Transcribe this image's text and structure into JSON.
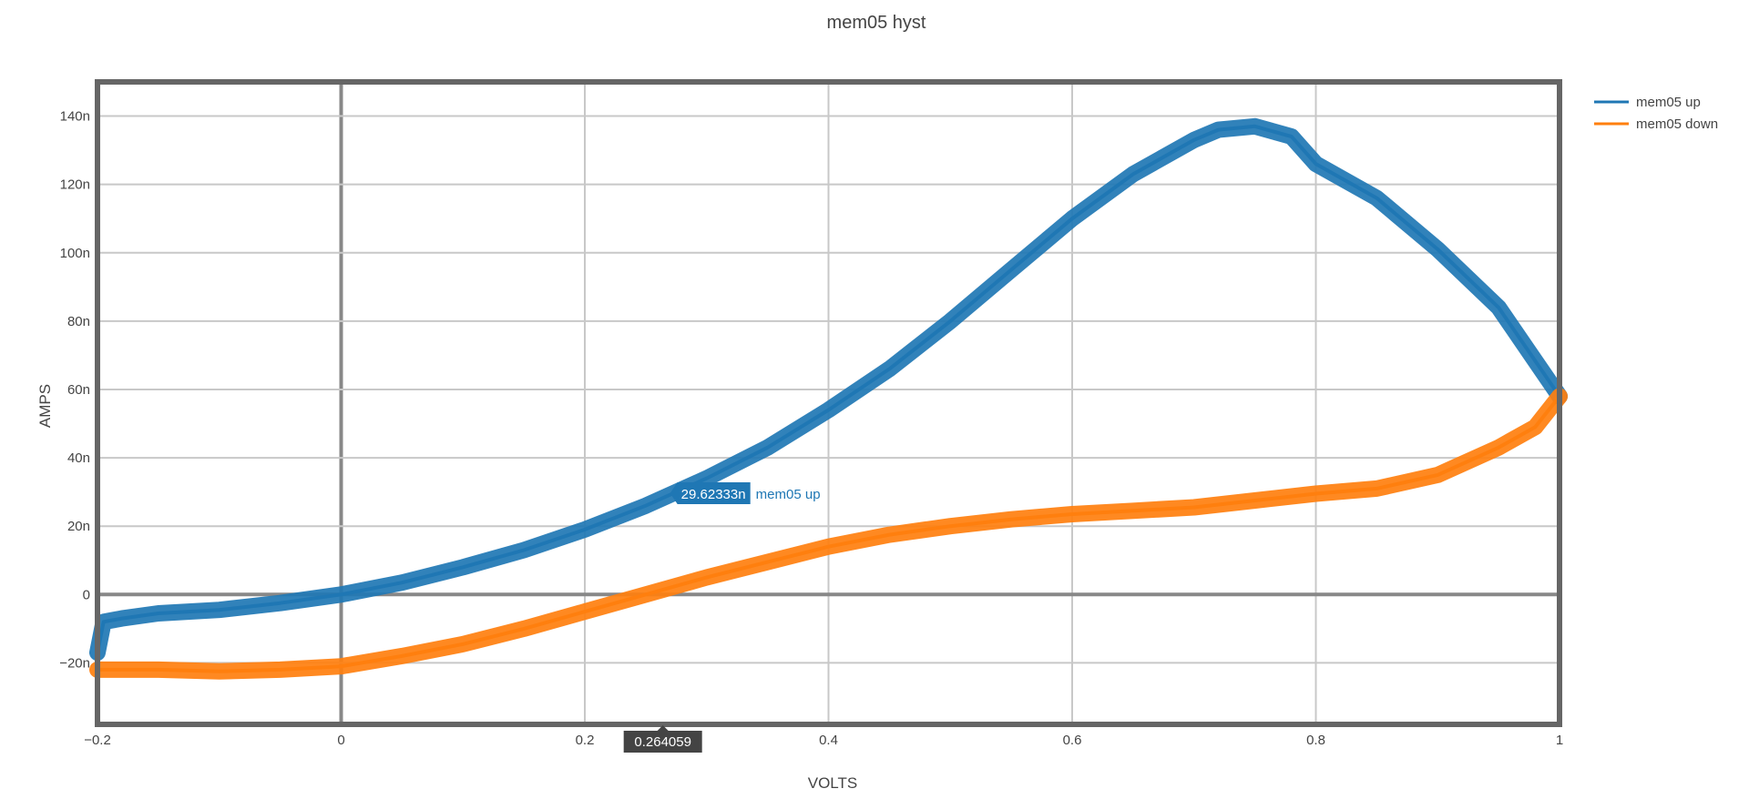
{
  "chart_data": {
    "type": "line",
    "title": "mem05 hyst",
    "xlabel": "VOLTS",
    "ylabel": "AMPS",
    "xlim": [
      -0.2,
      1.0
    ],
    "ylim": [
      -38,
      150
    ],
    "x_ticks": [
      {
        "value": -0.2,
        "label": "−0.2"
      },
      {
        "value": 0,
        "label": "0"
      },
      {
        "value": 0.2,
        "label": "0.2"
      },
      {
        "value": 0.4,
        "label": "0.4"
      },
      {
        "value": 0.6,
        "label": "0.6"
      },
      {
        "value": 0.8,
        "label": "0.8"
      },
      {
        "value": 1.0,
        "label": "1"
      }
    ],
    "y_ticks": [
      {
        "value": -20,
        "label": "−20n"
      },
      {
        "value": 0,
        "label": "0"
      },
      {
        "value": 20,
        "label": "20n"
      },
      {
        "value": 40,
        "label": "40n"
      },
      {
        "value": 60,
        "label": "60n"
      },
      {
        "value": 80,
        "label": "80n"
      },
      {
        "value": 100,
        "label": "100n"
      },
      {
        "value": 120,
        "label": "120n"
      },
      {
        "value": 140,
        "label": "140n"
      }
    ],
    "grid": true,
    "legend_position": "top-right",
    "series": [
      {
        "name": "mem05 up",
        "color": "#1f77b4",
        "x": [
          -0.2,
          -0.195,
          -0.18,
          -0.15,
          -0.1,
          -0.05,
          0.0,
          0.05,
          0.1,
          0.15,
          0.2,
          0.25,
          0.3,
          0.35,
          0.4,
          0.45,
          0.5,
          0.55,
          0.6,
          0.65,
          0.7,
          0.72,
          0.75,
          0.78,
          0.8,
          0.85,
          0.9,
          0.95,
          1.0
        ],
        "y": [
          -17,
          -8,
          -7,
          -5.5,
          -4.5,
          -2.5,
          0,
          3.5,
          8,
          13,
          19,
          26,
          34,
          43,
          54,
          66,
          80,
          95,
          110,
          123,
          133,
          136,
          137,
          134,
          126,
          116,
          101,
          84,
          58
        ]
      },
      {
        "name": "mem05 down",
        "color": "#ff7f0e",
        "x": [
          -0.2,
          -0.15,
          -0.1,
          -0.05,
          0.0,
          0.05,
          0.1,
          0.15,
          0.2,
          0.25,
          0.3,
          0.35,
          0.4,
          0.45,
          0.5,
          0.55,
          0.6,
          0.65,
          0.7,
          0.75,
          0.8,
          0.85,
          0.9,
          0.95,
          0.98,
          1.0
        ],
        "y": [
          -22,
          -22,
          -22.5,
          -22,
          -21,
          -18,
          -14.5,
          -10,
          -5,
          0,
          5,
          9.5,
          14,
          17.5,
          20,
          22,
          23.5,
          24.5,
          25.5,
          27.5,
          29.5,
          31,
          35,
          43,
          49,
          58
        ]
      }
    ],
    "hover": {
      "x_label": "0.264059",
      "y_value": "29.62333n",
      "series_name": "mem05 up",
      "x": 0.264059,
      "y": 29.62333
    }
  }
}
